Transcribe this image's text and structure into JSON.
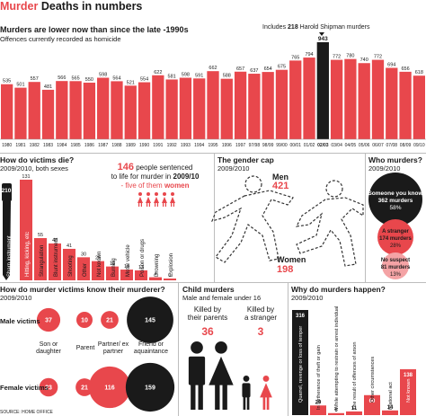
{
  "header": {
    "title_prefix": "Murder",
    "title_rest": "Deaths in numbers",
    "accent": "#e8474c",
    "dark": "#1a1a1a"
  },
  "main_chart": {
    "heading": "Murders are lower now than since the late -1990s",
    "subheading": "Offences currently recorded as homicide",
    "annotation": "Includes 218 Harold Shipman murders",
    "annotation_prefix": "Includes",
    "annotation_number": "218",
    "annotation_suffix": "Harold Shipman murders"
  },
  "chart_data": {
    "type": "bar",
    "categories": [
      "1980",
      "1981",
      "1982",
      "1983",
      "1984",
      "1985",
      "1986",
      "1987",
      "1988",
      "1989",
      "1990",
      "1991",
      "1992",
      "1993",
      "1994",
      "1995",
      "1996",
      "1997",
      "97/98",
      "98/99",
      "99/00",
      "00/01",
      "01/02",
      "02/03",
      "03/04",
      "04/05",
      "05/06",
      "06/07",
      "07/08",
      "08/09",
      "09/10"
    ],
    "values": [
      535,
      501,
      557,
      481,
      566,
      565,
      550,
      598,
      564,
      521,
      554,
      622,
      581,
      598,
      591,
      662,
      588,
      657,
      637,
      654,
      675,
      765,
      794,
      943,
      772,
      780,
      740,
      772,
      694,
      656,
      618
    ],
    "highlight_index": 23,
    "ylim": [
      0,
      960
    ]
  },
  "victims_died": {
    "heading": "How do victims die?",
    "sub": "2009/2010, both sexes",
    "total": "210",
    "categories": [
      "Sharp instrument",
      "Hitting, kicking, etc",
      "Strangulation",
      "Blunt instrument",
      "Shooting",
      "Other",
      "Not known",
      "Burning",
      "Motor vehicle",
      "Poison or drugs",
      "Drowning",
      "Explosion"
    ],
    "values": [
      210,
      131,
      55,
      48,
      41,
      30,
      25,
      18,
      14,
      13,
      4,
      0
    ]
  },
  "life_sentence": {
    "number": "146",
    "text1": "people sentenced",
    "text2": "to life for murder in 2009/10",
    "text2_prefix": "to life for murder in",
    "year": "2009/10",
    "five": "- five of them women",
    "five_prefix": "- five of them",
    "women": "women",
    "five_count": 5
  },
  "gender_gap": {
    "heading": "The gender cap",
    "sub": "2009/2010",
    "men_label": "Men",
    "men_value": "421",
    "women_label": "Women",
    "women_value": "198"
  },
  "who_murders": {
    "heading": "Who murders?",
    "sub": "2009/2010",
    "slices": [
      {
        "label": "Someone you know",
        "value": "362 murders",
        "pct": "58%",
        "fraction": 0.58,
        "color": "#1a1a1a"
      },
      {
        "label": "A stranger",
        "value": "174 murders",
        "pct": "28%",
        "fraction": 0.28,
        "color": "#e8474c"
      },
      {
        "label": "No suspect",
        "value": "81 murders",
        "pct": "13%",
        "fraction": 0.13,
        "color": "#f4a3a5"
      }
    ]
  },
  "know_murderer": {
    "heading": "How do murder victims know their murderer?",
    "sub": "2009/2010",
    "row_labels": [
      "Male victims",
      "Female victims"
    ],
    "col_labels": [
      "Son or daughter",
      "Parent",
      "Partner/ ex partner",
      "Friend or aquaintance"
    ],
    "male": [
      "37",
      "10",
      "21",
      "145"
    ],
    "female": [
      "23",
      "21",
      "116",
      "159"
    ]
  },
  "child_murders": {
    "heading": "Child murders",
    "sub": "Male and female under 16",
    "parents_label1": "Killed by",
    "parents_label2": "their parents",
    "parents_value": "36",
    "stranger_label1": "Killed by",
    "stranger_label2": "a stranger",
    "stranger_value": "3"
  },
  "why_murders": {
    "heading": "Why do murders happen?",
    "sub": "2009/2010",
    "categories": [
      "Quarrel, revenge or loss of temper",
      "In furtherance of theft or gain",
      "While attempting to restrain or arrest individual",
      "The result of offences of arson",
      "Other circumstances",
      "Irrational act",
      "Not known"
    ],
    "values": [
      316,
      29,
      6,
      11,
      60,
      14,
      138
    ]
  },
  "source": "SOURCE: HOME OFFICE"
}
